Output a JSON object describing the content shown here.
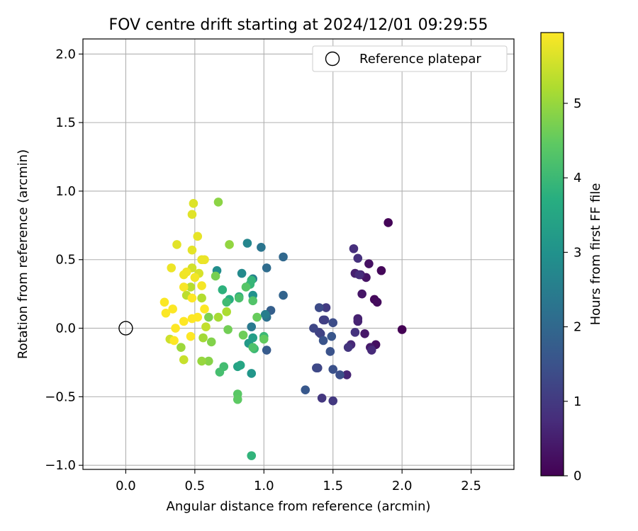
{
  "chart_data": {
    "type": "scatter",
    "title": "FOV centre drift starting at 2024/12/01 09:29:55",
    "xlabel": "Angular distance from reference (arcmin)",
    "ylabel": "Rotation from reference (arcmin)",
    "xlim": [
      -0.31,
      2.81
    ],
    "ylim": [
      -1.03,
      2.11
    ],
    "xticks": [
      0.0,
      0.5,
      1.0,
      1.5,
      2.0,
      2.5
    ],
    "xtick_labels": [
      "0.0",
      "0.5",
      "1.0",
      "1.5",
      "2.0",
      "2.5"
    ],
    "yticks": [
      -1.0,
      -0.5,
      0.0,
      0.5,
      1.0,
      1.5,
      2.0
    ],
    "ytick_labels": [
      "−1.0",
      "−0.5",
      "0.0",
      "0.5",
      "1.0",
      "1.5",
      "2.0"
    ],
    "grid": true,
    "legend": {
      "position": "top-right",
      "entries": [
        "Reference platepar"
      ]
    },
    "reference_point": {
      "x": 0.0,
      "y": 0.0
    },
    "colorbar": {
      "label": "Hours from first FF file",
      "colormap": "viridis",
      "range": [
        0,
        5.95
      ],
      "ticks": [
        0,
        1,
        2,
        3,
        4,
        5
      ],
      "tick_labels": [
        "0",
        "1",
        "2",
        "3",
        "4",
        "5"
      ]
    },
    "points": [
      {
        "x": 2.0,
        "y": -0.01,
        "h": 0.0
      },
      {
        "x": 1.9,
        "y": 0.77,
        "h": 0.05
      },
      {
        "x": 1.85,
        "y": 0.42,
        "h": 0.1
      },
      {
        "x": 1.8,
        "y": 0.21,
        "h": 0.14
      },
      {
        "x": 1.82,
        "y": 0.19,
        "h": 0.18
      },
      {
        "x": 1.81,
        "y": -0.12,
        "h": 0.22
      },
      {
        "x": 1.76,
        "y": 0.47,
        "h": 0.26
      },
      {
        "x": 1.74,
        "y": 0.37,
        "h": 0.3
      },
      {
        "x": 1.71,
        "y": 0.25,
        "h": 0.34
      },
      {
        "x": 1.73,
        "y": -0.04,
        "h": 0.38
      },
      {
        "x": 1.77,
        "y": -0.14,
        "h": 0.42
      },
      {
        "x": 1.7,
        "y": 0.39,
        "h": 0.46
      },
      {
        "x": 1.66,
        "y": 0.4,
        "h": 0.5
      },
      {
        "x": 1.68,
        "y": 0.07,
        "h": 0.54
      },
      {
        "x": 1.68,
        "y": 0.05,
        "h": 0.58
      },
      {
        "x": 1.6,
        "y": -0.34,
        "h": 0.62
      },
      {
        "x": 1.63,
        "y": -0.12,
        "h": 0.66
      },
      {
        "x": 1.78,
        "y": -0.16,
        "h": 0.7
      },
      {
        "x": 1.69,
        "y": 0.39,
        "h": 0.74
      },
      {
        "x": 1.65,
        "y": 0.58,
        "h": 0.78
      },
      {
        "x": 1.68,
        "y": 0.51,
        "h": 0.82
      },
      {
        "x": 1.66,
        "y": -0.03,
        "h": 0.86
      },
      {
        "x": 1.61,
        "y": -0.14,
        "h": 0.9
      },
      {
        "x": 1.42,
        "y": -0.51,
        "h": 0.94
      },
      {
        "x": 1.5,
        "y": -0.53,
        "h": 0.98
      },
      {
        "x": 1.45,
        "y": 0.15,
        "h": 1.02
      },
      {
        "x": 1.43,
        "y": 0.06,
        "h": 1.06
      },
      {
        "x": 1.44,
        "y": 0.06,
        "h": 1.1
      },
      {
        "x": 1.4,
        "y": -0.03,
        "h": 1.14
      },
      {
        "x": 1.41,
        "y": -0.04,
        "h": 1.18
      },
      {
        "x": 1.39,
        "y": -0.29,
        "h": 1.22
      },
      {
        "x": 1.36,
        "y": 0.0,
        "h": 1.26
      },
      {
        "x": 1.38,
        "y": -0.29,
        "h": 1.3
      },
      {
        "x": 1.4,
        "y": 0.15,
        "h": 1.34
      },
      {
        "x": 1.5,
        "y": 0.04,
        "h": 1.38
      },
      {
        "x": 1.55,
        "y": -0.34,
        "h": 1.42
      },
      {
        "x": 1.5,
        "y": -0.3,
        "h": 1.46
      },
      {
        "x": 1.48,
        "y": -0.17,
        "h": 1.5
      },
      {
        "x": 1.43,
        "y": -0.09,
        "h": 1.54
      },
      {
        "x": 1.49,
        "y": -0.06,
        "h": 1.58
      },
      {
        "x": 1.3,
        "y": -0.45,
        "h": 1.62
      },
      {
        "x": 1.02,
        "y": -0.16,
        "h": 1.7
      },
      {
        "x": 1.05,
        "y": 0.13,
        "h": 1.8
      },
      {
        "x": 1.14,
        "y": 0.24,
        "h": 1.9
      },
      {
        "x": 1.14,
        "y": 0.52,
        "h": 2.0
      },
      {
        "x": 1.02,
        "y": 0.44,
        "h": 2.1
      },
      {
        "x": 1.02,
        "y": 0.08,
        "h": 2.2
      },
      {
        "x": 0.98,
        "y": 0.59,
        "h": 2.3
      },
      {
        "x": 0.91,
        "y": 0.01,
        "h": 2.4
      },
      {
        "x": 1.01,
        "y": 0.1,
        "h": 2.5
      },
      {
        "x": 0.92,
        "y": 0.36,
        "h": 2.6
      },
      {
        "x": 0.88,
        "y": 0.62,
        "h": 2.7
      },
      {
        "x": 0.84,
        "y": 0.4,
        "h": 2.8
      },
      {
        "x": 0.66,
        "y": 0.42,
        "h": 2.9
      },
      {
        "x": 0.92,
        "y": 0.24,
        "h": 3.0
      },
      {
        "x": 0.91,
        "y": -0.33,
        "h": 3.1
      },
      {
        "x": 0.89,
        "y": -0.11,
        "h": 3.2
      },
      {
        "x": 0.92,
        "y": -0.07,
        "h": 3.3
      },
      {
        "x": 0.81,
        "y": -0.28,
        "h": 3.4
      },
      {
        "x": 0.83,
        "y": -0.27,
        "h": 3.5
      },
      {
        "x": 0.82,
        "y": 0.23,
        "h": 3.6
      },
      {
        "x": 0.75,
        "y": 0.21,
        "h": 3.7
      },
      {
        "x": 0.7,
        "y": 0.28,
        "h": 3.8
      },
      {
        "x": 0.91,
        "y": -0.93,
        "h": 3.85
      },
      {
        "x": 0.91,
        "y": 0.35,
        "h": 3.9
      },
      {
        "x": 0.9,
        "y": 0.32,
        "h": 3.92
      },
      {
        "x": 0.93,
        "y": -0.15,
        "h": 3.95
      },
      {
        "x": 1.0,
        "y": -0.06,
        "h": 4.0
      },
      {
        "x": 0.73,
        "y": 0.19,
        "h": 4.05
      },
      {
        "x": 0.71,
        "y": -0.28,
        "h": 4.1
      },
      {
        "x": 0.68,
        "y": -0.32,
        "h": 4.15
      },
      {
        "x": 0.82,
        "y": 0.22,
        "h": 4.2
      },
      {
        "x": 0.92,
        "y": -0.14,
        "h": 4.25
      },
      {
        "x": 0.92,
        "y": 0.2,
        "h": 4.3
      },
      {
        "x": 0.87,
        "y": 0.3,
        "h": 4.35
      },
      {
        "x": 0.81,
        "y": -0.48,
        "h": 4.4
      },
      {
        "x": 0.81,
        "y": -0.52,
        "h": 4.45
      },
      {
        "x": 1.0,
        "y": -0.08,
        "h": 4.5
      },
      {
        "x": 0.95,
        "y": 0.08,
        "h": 4.55
      },
      {
        "x": 0.85,
        "y": -0.05,
        "h": 4.6
      },
      {
        "x": 0.74,
        "y": -0.01,
        "h": 4.65
      },
      {
        "x": 0.65,
        "y": 0.38,
        "h": 4.7
      },
      {
        "x": 0.6,
        "y": 0.08,
        "h": 4.75
      },
      {
        "x": 0.62,
        "y": -0.1,
        "h": 4.8
      },
      {
        "x": 0.6,
        "y": -0.24,
        "h": 4.85
      },
      {
        "x": 0.67,
        "y": 0.92,
        "h": 4.9
      },
      {
        "x": 0.75,
        "y": 0.61,
        "h": 4.95
      },
      {
        "x": 0.55,
        "y": -0.24,
        "h": 5.0
      },
      {
        "x": 0.4,
        "y": -0.14,
        "h": 5.05
      },
      {
        "x": 0.56,
        "y": -0.07,
        "h": 5.1
      },
      {
        "x": 0.67,
        "y": 0.08,
        "h": 5.15
      },
      {
        "x": 0.73,
        "y": 0.12,
        "h": 5.2
      },
      {
        "x": 0.55,
        "y": 0.22,
        "h": 5.25
      },
      {
        "x": 0.47,
        "y": 0.3,
        "h": 5.3
      },
      {
        "x": 0.44,
        "y": 0.24,
        "h": 5.35
      },
      {
        "x": 0.58,
        "y": 0.01,
        "h": 5.4
      },
      {
        "x": 0.42,
        "y": -0.23,
        "h": 5.45
      },
      {
        "x": 0.32,
        "y": -0.08,
        "h": 5.5
      },
      {
        "x": 0.48,
        "y": 0.44,
        "h": 5.55
      },
      {
        "x": 0.53,
        "y": 0.4,
        "h": 5.6
      },
      {
        "x": 0.49,
        "y": 0.91,
        "h": 5.65
      },
      {
        "x": 0.48,
        "y": 0.83,
        "h": 5.68
      },
      {
        "x": 0.37,
        "y": 0.61,
        "h": 5.7
      },
      {
        "x": 0.48,
        "y": 0.57,
        "h": 5.72
      },
      {
        "x": 0.52,
        "y": 0.67,
        "h": 5.74
      },
      {
        "x": 0.55,
        "y": 0.5,
        "h": 5.76
      },
      {
        "x": 0.57,
        "y": 0.5,
        "h": 5.78
      },
      {
        "x": 0.33,
        "y": 0.44,
        "h": 5.8
      },
      {
        "x": 0.42,
        "y": 0.39,
        "h": 5.82
      },
      {
        "x": 0.44,
        "y": 0.41,
        "h": 5.84
      },
      {
        "x": 0.5,
        "y": 0.37,
        "h": 5.86
      },
      {
        "x": 0.55,
        "y": 0.31,
        "h": 5.88
      },
      {
        "x": 0.42,
        "y": 0.3,
        "h": 5.9
      },
      {
        "x": 0.28,
        "y": 0.19,
        "h": 5.92
      },
      {
        "x": 0.29,
        "y": 0.11,
        "h": 5.93
      },
      {
        "x": 0.34,
        "y": 0.14,
        "h": 5.94
      },
      {
        "x": 0.48,
        "y": 0.22,
        "h": 5.95
      },
      {
        "x": 0.42,
        "y": 0.05,
        "h": 5.95
      },
      {
        "x": 0.36,
        "y": 0.0,
        "h": 5.95
      },
      {
        "x": 0.35,
        "y": -0.09,
        "h": 5.95
      },
      {
        "x": 0.47,
        "y": -0.06,
        "h": 5.95
      },
      {
        "x": 0.52,
        "y": 0.08,
        "h": 5.95
      },
      {
        "x": 0.48,
        "y": 0.07,
        "h": 5.95
      },
      {
        "x": 0.57,
        "y": 0.14,
        "h": 5.95
      }
    ]
  }
}
